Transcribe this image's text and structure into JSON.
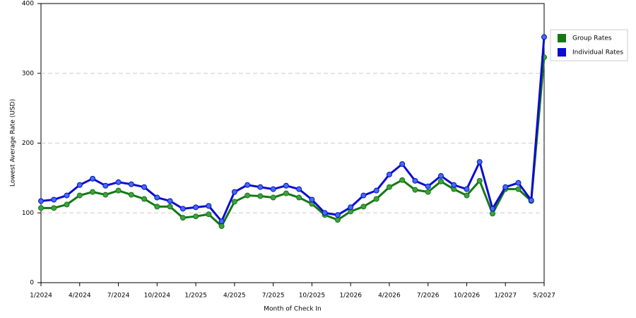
{
  "chart_data": {
    "type": "line",
    "x_label": "Month of Check In",
    "y_label": "Lowest Average Rate (USD)",
    "categories": [
      "1/2024",
      null,
      null,
      "4/2024",
      null,
      null,
      "7/2024",
      null,
      null,
      "10/2024",
      null,
      null,
      "1/2025",
      null,
      null,
      "4/2025",
      null,
      null,
      "7/2025",
      null,
      null,
      "10/2025",
      null,
      null,
      "1/2026",
      null,
      null,
      "4/2026",
      null,
      null,
      "7/2026",
      null,
      null,
      "10/2026",
      null,
      null,
      "1/2027",
      null,
      null,
      "5/2027"
    ],
    "series": [
      {
        "name": "Group Rates",
        "color": "#137813",
        "marker_color": "#3fa03f",
        "values": [
          107,
          107,
          112,
          125,
          130,
          126,
          132,
          126,
          120,
          109,
          109,
          93,
          95,
          98,
          81,
          116,
          125,
          124,
          122,
          128,
          122,
          113,
          97,
          90,
          102,
          109,
          120,
          137,
          147,
          133,
          130,
          145,
          134,
          125,
          146,
          99,
          134,
          134,
          117,
          323
        ]
      },
      {
        "name": "Individual Rates",
        "color": "#0d0dd0",
        "marker_color": "#3f6fe8",
        "values": [
          117,
          119,
          125,
          140,
          149,
          139,
          144,
          141,
          137,
          122,
          117,
          106,
          108,
          110,
          88,
          130,
          140,
          137,
          134,
          139,
          134,
          119,
          100,
          97,
          108,
          125,
          132,
          155,
          170,
          146,
          138,
          153,
          140,
          134,
          173,
          106,
          137,
          143,
          118,
          352
        ]
      }
    ],
    "ylim": [
      0,
      400
    ],
    "yticks": [
      0,
      100,
      200,
      300,
      400
    ],
    "grid": true,
    "legend": "right"
  }
}
